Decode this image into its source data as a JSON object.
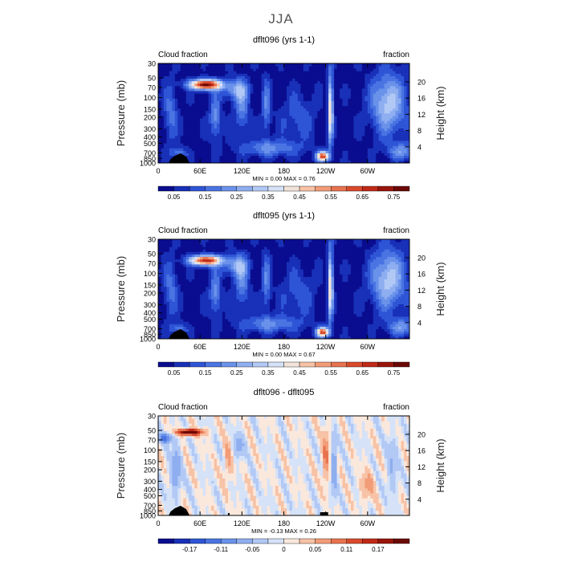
{
  "figure_title": "JJA",
  "chart_data": [
    {
      "type": "heatmap",
      "title": "dflt096 (yrs 1-1)",
      "left_label": "Cloud fraction",
      "right_label": "fraction",
      "ylabel": "Pressure (mb)",
      "y2label": "Height (km)",
      "x_ticks": [
        "0",
        "60E",
        "120E",
        "180",
        "120W",
        "60W"
      ],
      "x_tick_lons": [
        0,
        60,
        120,
        180,
        240,
        300
      ],
      "xlim": [
        0,
        360
      ],
      "ylim": [
        1000,
        30
      ],
      "y_ticks": [
        "30",
        "50",
        "70",
        "100",
        "150",
        "200",
        "300",
        "400",
        "500",
        "700",
        "850",
        "1000"
      ],
      "y_tick_values": [
        30,
        50,
        70,
        100,
        150,
        200,
        300,
        400,
        500,
        700,
        850,
        1000
      ],
      "y2_ticks": [
        "20",
        "16",
        "12",
        "8",
        "4"
      ],
      "y2_tick_values": [
        20,
        16,
        12,
        8,
        4
      ],
      "stats": "MIN =    0.00   MAX =    0.76",
      "colorbar_labels": [
        "0.05",
        "0.15",
        "0.25",
        "0.35",
        "0.45",
        "0.55",
        "0.65",
        "0.75"
      ],
      "colorbar_levels": [
        0,
        0.05,
        0.1,
        0.15,
        0.2,
        0.25,
        0.3,
        0.35,
        0.4,
        0.45,
        0.5,
        0.55,
        0.6,
        0.65,
        0.7,
        0.75,
        0.8
      ],
      "colors": [
        "#0a0d8f",
        "#1930b8",
        "#2e55d6",
        "#4a74e2",
        "#6a92ea",
        "#8eaef0",
        "#b2c9f5",
        "#d5e2f8",
        "#f2e3da",
        "#f7c2a6",
        "#f29c78",
        "#e8734f",
        "#d94a2c",
        "#c02a17",
        "#99150b",
        "#6b0806"
      ]
    },
    {
      "type": "heatmap",
      "title": "dflt095 (yrs 1-1)",
      "left_label": "Cloud fraction",
      "right_label": "fraction",
      "ylabel": "Pressure (mb)",
      "y2label": "Height (km)",
      "x_ticks": [
        "0",
        "60E",
        "120E",
        "180",
        "120W",
        "60W"
      ],
      "x_tick_lons": [
        0,
        60,
        120,
        180,
        240,
        300
      ],
      "xlim": [
        0,
        360
      ],
      "ylim": [
        1000,
        30
      ],
      "y_ticks": [
        "30",
        "50",
        "70",
        "100",
        "150",
        "200",
        "300",
        "400",
        "500",
        "700",
        "850",
        "1000"
      ],
      "y_tick_values": [
        30,
        50,
        70,
        100,
        150,
        200,
        300,
        400,
        500,
        700,
        850,
        1000
      ],
      "y2_ticks": [
        "20",
        "16",
        "12",
        "8",
        "4"
      ],
      "y2_tick_values": [
        20,
        16,
        12,
        8,
        4
      ],
      "stats": "MIN =    0.00   MAX =    0.67",
      "colorbar_labels": [
        "0.05",
        "0.15",
        "0.25",
        "0.35",
        "0.45",
        "0.55",
        "0.65",
        "0.75"
      ],
      "colorbar_levels": [
        0,
        0.05,
        0.1,
        0.15,
        0.2,
        0.25,
        0.3,
        0.35,
        0.4,
        0.45,
        0.5,
        0.55,
        0.6,
        0.65,
        0.7,
        0.75,
        0.8
      ],
      "colors": [
        "#0a0d8f",
        "#1930b8",
        "#2e55d6",
        "#4a74e2",
        "#6a92ea",
        "#8eaef0",
        "#b2c9f5",
        "#d5e2f8",
        "#f2e3da",
        "#f7c2a6",
        "#f29c78",
        "#e8734f",
        "#d94a2c",
        "#c02a17",
        "#99150b",
        "#6b0806"
      ]
    },
    {
      "type": "heatmap",
      "title": "dflt096 - dflt095",
      "left_label": "Cloud fraction",
      "right_label": "fraction",
      "ylabel": "Pressure (mb)",
      "y2label": "Height (km)",
      "x_ticks": [
        "0",
        "60E",
        "120E",
        "180",
        "120W",
        "60W"
      ],
      "x_tick_lons": [
        0,
        60,
        120,
        180,
        240,
        300
      ],
      "xlim": [
        0,
        360
      ],
      "ylim": [
        1000,
        30
      ],
      "y_ticks": [
        "30",
        "50",
        "70",
        "100",
        "150",
        "200",
        "300",
        "400",
        "500",
        "700",
        "850",
        "1000"
      ],
      "y_tick_values": [
        30,
        50,
        70,
        100,
        150,
        200,
        300,
        400,
        500,
        700,
        850,
        1000
      ],
      "y2_ticks": [
        "20",
        "16",
        "12",
        "8",
        "4"
      ],
      "y2_tick_values": [
        20,
        16,
        12,
        8,
        4
      ],
      "stats": "MIN =   -0.13   MAX =    0.26",
      "colorbar_labels": [
        "-0.17",
        "-0.11",
        "-0.05",
        "0",
        "0.05",
        "0.11",
        "0.17"
      ],
      "colorbar_levels": [
        -0.23,
        -0.2,
        -0.17,
        -0.14,
        -0.11,
        -0.08,
        -0.05,
        -0.02,
        0,
        0.02,
        0.05,
        0.08,
        0.11,
        0.14,
        0.17,
        0.2,
        0.23
      ],
      "colors": [
        "#0a0d8f",
        "#1930b8",
        "#2e55d6",
        "#4a74e2",
        "#6a92ea",
        "#8eaef0",
        "#b2c9f5",
        "#d5e2f8",
        "#fbe8dc",
        "#f7c2a6",
        "#f29c78",
        "#e8734f",
        "#d94a2c",
        "#c02a17",
        "#99150b",
        "#6b0806"
      ]
    }
  ]
}
